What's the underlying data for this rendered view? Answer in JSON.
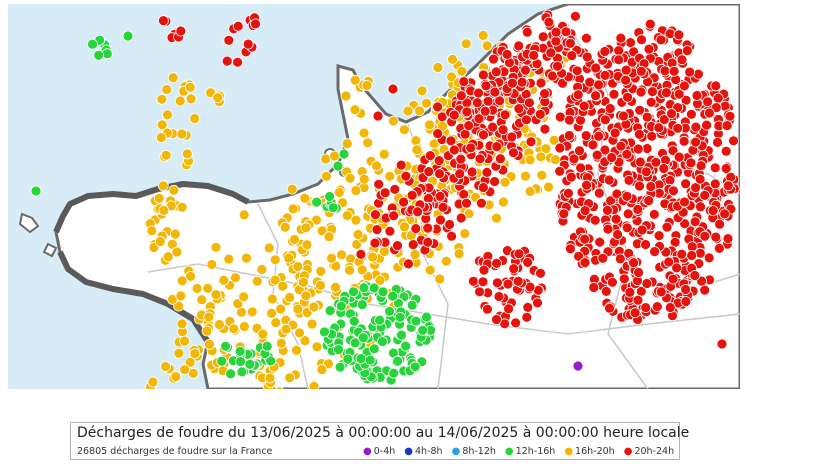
{
  "legend": {
    "title": "Décharges de foudre du 13/06/2025 à 00:00:00 au 14/06/2025 à 00:00:00 heure locale",
    "count_text": "26805 décharges de foudre sur la France",
    "items": [
      {
        "label": "0-4h",
        "color": "#9b19c9"
      },
      {
        "label": "4h-8h",
        "color": "#1836c8"
      },
      {
        "label": "8h-12h",
        "color": "#2aa3e8"
      },
      {
        "label": "12h-16h",
        "color": "#28d43c"
      },
      {
        "label": "16h-20h",
        "color": "#f2b705"
      },
      {
        "label": "20h-24h",
        "color": "#e8120c"
      }
    ]
  },
  "map": {
    "sea_color": "#d8ecf8",
    "land_color": "#ffffff",
    "coast_color": "#6a6a6a",
    "border_color": "#c8c8c8"
  }
}
